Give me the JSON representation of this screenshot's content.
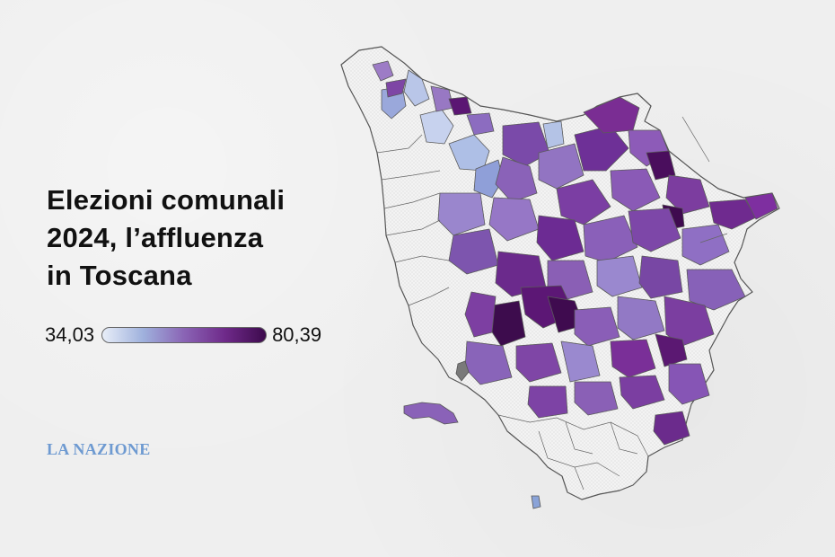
{
  "title_lines": [
    "Elezioni comunali",
    "2024, l’affluenza",
    "in Toscana"
  ],
  "legend": {
    "min_label": "34,03",
    "max_label": "80,39",
    "min_value": 34.03,
    "max_value": 80.39,
    "colors": [
      "#e8eef8",
      "#9fb1dd",
      "#8a64b5",
      "#6f2a8a",
      "#3d0a4d"
    ]
  },
  "logo_text": "LA NAZIONE",
  "map": {
    "region": "Toscana",
    "no_data_fill": "hatched light gray",
    "border_color": "#555555"
  }
}
